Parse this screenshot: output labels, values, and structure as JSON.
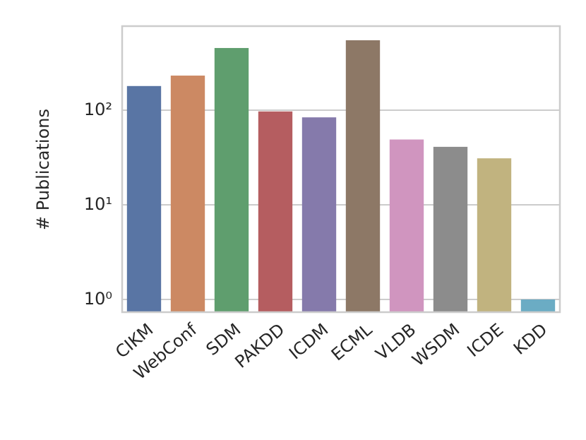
{
  "chart_data": {
    "type": "bar",
    "y_label": "# Publications",
    "log_scale_y": true,
    "grid": true,
    "categories": [
      "CIKM",
      "WebConf",
      "SDM",
      "PAKDD",
      "ICDM",
      "ECML",
      "VLDB",
      "WSDM",
      "ICDE",
      "KDD"
    ],
    "values": [
      180,
      232,
      454,
      97,
      84,
      548,
      49,
      41,
      31,
      1
    ],
    "colors": [
      "#5975a4",
      "#cc8963",
      "#5f9e6e",
      "#b55d60",
      "#857aab",
      "#8d7866",
      "#d095bf",
      "#8c8c8c",
      "#c1b37f",
      "#6bacc4"
    ],
    "ylim": [
      0.734,
      773
    ],
    "yticks": [
      {
        "value": 1,
        "label": "10⁰"
      },
      {
        "value": 10,
        "label": "10¹"
      },
      {
        "value": 100,
        "label": "10²"
      }
    ]
  }
}
